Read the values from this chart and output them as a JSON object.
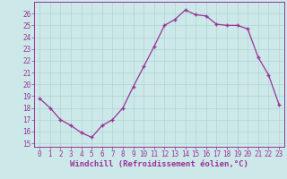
{
  "x": [
    0,
    1,
    2,
    3,
    4,
    5,
    6,
    7,
    8,
    9,
    10,
    11,
    12,
    13,
    14,
    15,
    16,
    17,
    18,
    19,
    20,
    21,
    22,
    23
  ],
  "y": [
    18.8,
    18.0,
    17.0,
    16.5,
    15.9,
    15.5,
    16.5,
    17.0,
    18.0,
    19.8,
    21.5,
    23.2,
    25.0,
    25.5,
    26.3,
    25.9,
    25.8,
    25.1,
    25.0,
    25.0,
    24.7,
    22.3,
    20.8,
    18.3
  ],
  "line_color": "#993399",
  "marker": "+",
  "marker_size": 3,
  "xlabel": "Windchill (Refroidissement éolien,°C)",
  "xlim_min": -0.5,
  "xlim_max": 23.5,
  "ylim_min": 14.7,
  "ylim_max": 27.0,
  "yticks": [
    15,
    16,
    17,
    18,
    19,
    20,
    21,
    22,
    23,
    24,
    25,
    26
  ],
  "xticks": [
    0,
    1,
    2,
    3,
    4,
    5,
    6,
    7,
    8,
    9,
    10,
    11,
    12,
    13,
    14,
    15,
    16,
    17,
    18,
    19,
    20,
    21,
    22,
    23
  ],
  "bg_color": "#cce8e8",
  "grid_color": "#b0d4d4",
  "xlabel_color": "#993399",
  "tick_color": "#993399",
  "spine_color": "#993399",
  "font_size_xlabel": 6.5,
  "font_size_ticks": 5.5,
  "linewidth": 0.9,
  "marker_color": "#993399"
}
